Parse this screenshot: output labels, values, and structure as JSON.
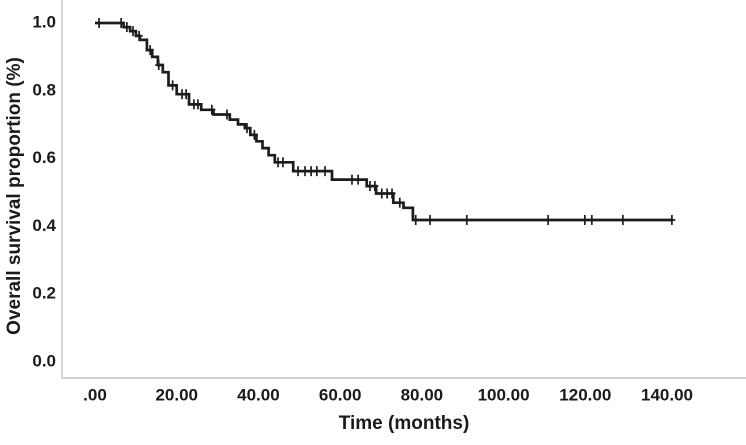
{
  "figure": {
    "background": "#ffffff"
  },
  "chart_data": {
    "type": "line",
    "subtype": "kaplan_meier_step",
    "title": "",
    "xlabel": "Time (months)",
    "ylabel": "Overall survival proportion (%)",
    "x_tick_labels": [
      ".00",
      "20.00",
      "40.00",
      "60.00",
      "80.00",
      "100.00",
      "120.00",
      "140.00"
    ],
    "x_tick_values": [
      0,
      20,
      40,
      60,
      80,
      100,
      120,
      140
    ],
    "y_tick_labels": [
      "0.0",
      "0.2",
      "0.4",
      "0.6",
      "0.8",
      "1.0"
    ],
    "y_tick_values": [
      0,
      0.2,
      0.4,
      0.6,
      0.8,
      1.0
    ],
    "xlim": [
      -8,
      159
    ],
    "ylim": [
      -0.05,
      1.07
    ],
    "grid": false,
    "legend": null,
    "line_color": "#1c1c1c",
    "axis_color": "#c3c3c3",
    "series": [
      {
        "name": "Overall survival",
        "start": [
          0,
          1.0
        ],
        "end_time": 141.5,
        "steps": [
          [
            7.0,
            0.988
          ],
          [
            8.6,
            0.976
          ],
          [
            10.0,
            0.962
          ],
          [
            11.0,
            0.95
          ],
          [
            12.7,
            0.92
          ],
          [
            14.0,
            0.9
          ],
          [
            15.4,
            0.876
          ],
          [
            16.6,
            0.855
          ],
          [
            18.0,
            0.816
          ],
          [
            20.0,
            0.79
          ],
          [
            23.0,
            0.76
          ],
          [
            26.0,
            0.744
          ],
          [
            29.0,
            0.73
          ],
          [
            33.0,
            0.715
          ],
          [
            35.0,
            0.701
          ],
          [
            36.7,
            0.69
          ],
          [
            38.0,
            0.67
          ],
          [
            39.5,
            0.651
          ],
          [
            41.0,
            0.631
          ],
          [
            42.5,
            0.61
          ],
          [
            44.0,
            0.589
          ],
          [
            48.5,
            0.563
          ],
          [
            58.0,
            0.538
          ],
          [
            66.5,
            0.519
          ],
          [
            68.8,
            0.497
          ],
          [
            73.0,
            0.47
          ],
          [
            75.5,
            0.455
          ],
          [
            77.8,
            0.419
          ]
        ],
        "final_survival": 0.42,
        "censor_times": [
          1.0,
          6.4,
          7.8,
          9.3,
          10.8,
          13.5,
          15.6,
          19.0,
          21.3,
          22.3,
          24.2,
          25.2,
          28.6,
          32.3,
          37.2,
          39.0,
          44.8,
          46.0,
          49.7,
          51.4,
          52.9,
          54.3,
          56.3,
          62.9,
          64.4,
          67.3,
          68.5,
          70.2,
          71.5,
          72.7,
          74.6,
          78.5,
          82.0,
          91.0,
          110.9,
          119.9,
          121.6,
          129.2,
          141.2
        ]
      }
    ]
  }
}
